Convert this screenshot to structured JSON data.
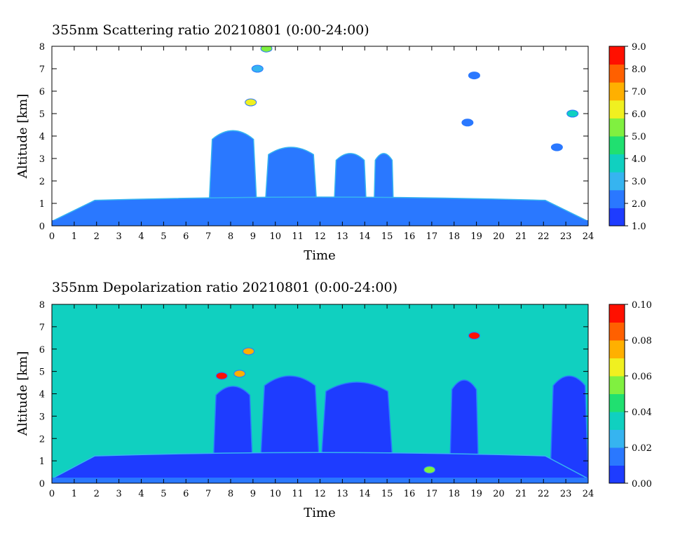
{
  "chart_data": [
    {
      "type": "heatmap",
      "title": "355nm Scattering ratio  20210801 (0:00-24:00)",
      "xlabel": "Time",
      "ylabel": "Altitude [km]",
      "xlim": [
        0,
        24
      ],
      "ylim": [
        0,
        8
      ],
      "x_ticks": [
        "0",
        "1",
        "2",
        "3",
        "4",
        "5",
        "6",
        "7",
        "8",
        "9",
        "10",
        "11",
        "12",
        "13",
        "14",
        "15",
        "16",
        "17",
        "18",
        "19",
        "20",
        "21",
        "22",
        "23",
        "24"
      ],
      "y_ticks": [
        "0",
        "1",
        "2",
        "3",
        "4",
        "5",
        "6",
        "7",
        "8"
      ],
      "colorbar": {
        "range": [
          1.0,
          9.0
        ],
        "ticks": [
          "1.0",
          "2.0",
          "3.0",
          "4.0",
          "5.0",
          "6.0",
          "7.0",
          "8.0",
          "9.0"
        ],
        "colors": [
          "#1e3cff",
          "#2a78ff",
          "#36b4f0",
          "#10d0c0",
          "#20e070",
          "#80f040",
          "#f0f020",
          "#ffb000",
          "#ff6000",
          "#ff1000"
        ]
      },
      "cloud_layers": [
        {
          "x": [
            7.0,
            9.2
          ],
          "top_km": 4.5,
          "value": 2.0
        },
        {
          "x": [
            9.5,
            11.9
          ],
          "top_km": 3.7,
          "value": 2.0
        },
        {
          "x": [
            12.6,
            14.1
          ],
          "top_km": 3.4,
          "value": 2.0
        },
        {
          "x": [
            14.4,
            15.3
          ],
          "top_km": 3.4,
          "value": 2.0
        },
        {
          "x": [
            0.0,
            24.0
          ],
          "top_km": 1.3,
          "value": 2.5
        }
      ],
      "features": [
        {
          "x": 9.6,
          "altitude_km": 7.9,
          "value": 5.0
        },
        {
          "x": 9.2,
          "altitude_km": 7.0,
          "value": 3.0
        },
        {
          "x": 8.9,
          "altitude_km": 5.5,
          "value": 6.0
        },
        {
          "x": 18.9,
          "altitude_km": 6.7,
          "value": 2.0
        },
        {
          "x": 18.6,
          "altitude_km": 4.6,
          "value": 2.0
        },
        {
          "x": 23.3,
          "altitude_km": 5.0,
          "value": 4.0
        },
        {
          "x": 22.6,
          "altitude_km": 3.5,
          "value": 2.0
        }
      ]
    },
    {
      "type": "heatmap",
      "title": "355nm Depolarization ratio  20210801 (0:00-24:00)",
      "xlabel": "Time",
      "ylabel": "Altitude [km]",
      "xlim": [
        0,
        24
      ],
      "ylim": [
        0,
        8
      ],
      "x_ticks": [
        "0",
        "1",
        "2",
        "3",
        "4",
        "5",
        "6",
        "7",
        "8",
        "9",
        "10",
        "11",
        "12",
        "13",
        "14",
        "15",
        "16",
        "17",
        "18",
        "19",
        "20",
        "21",
        "22",
        "23",
        "24"
      ],
      "y_ticks": [
        "0",
        "1",
        "2",
        "3",
        "4",
        "5",
        "6",
        "7",
        "8"
      ],
      "background_value": 0.04,
      "colorbar": {
        "range": [
          0.0,
          0.1
        ],
        "ticks": [
          "0.00",
          "0.02",
          "0.04",
          "0.06",
          "0.08",
          "0.10"
        ],
        "colors": [
          "#1e3cff",
          "#2a78ff",
          "#36b4f0",
          "#10d0c0",
          "#20e070",
          "#80f040",
          "#f0f020",
          "#ffb000",
          "#ff6000",
          "#ff1000"
        ]
      },
      "cloud_layers": [
        {
          "x": [
            7.2,
            9.0
          ],
          "top_km": 4.6,
          "value": 0.0
        },
        {
          "x": [
            9.3,
            12.0
          ],
          "top_km": 5.1,
          "value": 0.0
        },
        {
          "x": [
            12.0,
            15.3
          ],
          "top_km": 4.8,
          "value": 0.0
        },
        {
          "x": [
            17.8,
            19.1
          ],
          "top_km": 4.9,
          "value": 0.0
        },
        {
          "x": [
            22.3,
            24.0
          ],
          "top_km": 5.1,
          "value": 0.0
        },
        {
          "x": [
            0.0,
            24.0
          ],
          "top_km": 1.4,
          "value": 0.01
        }
      ],
      "features": [
        {
          "x": 8.8,
          "altitude_km": 5.9,
          "value": 0.08
        },
        {
          "x": 8.4,
          "altitude_km": 4.9,
          "value": 0.07
        },
        {
          "x": 7.6,
          "altitude_km": 4.8,
          "value": 0.09
        },
        {
          "x": 18.9,
          "altitude_km": 6.6,
          "value": 0.1
        },
        {
          "x": 16.9,
          "altitude_km": 0.6,
          "value": 0.05
        }
      ]
    }
  ]
}
